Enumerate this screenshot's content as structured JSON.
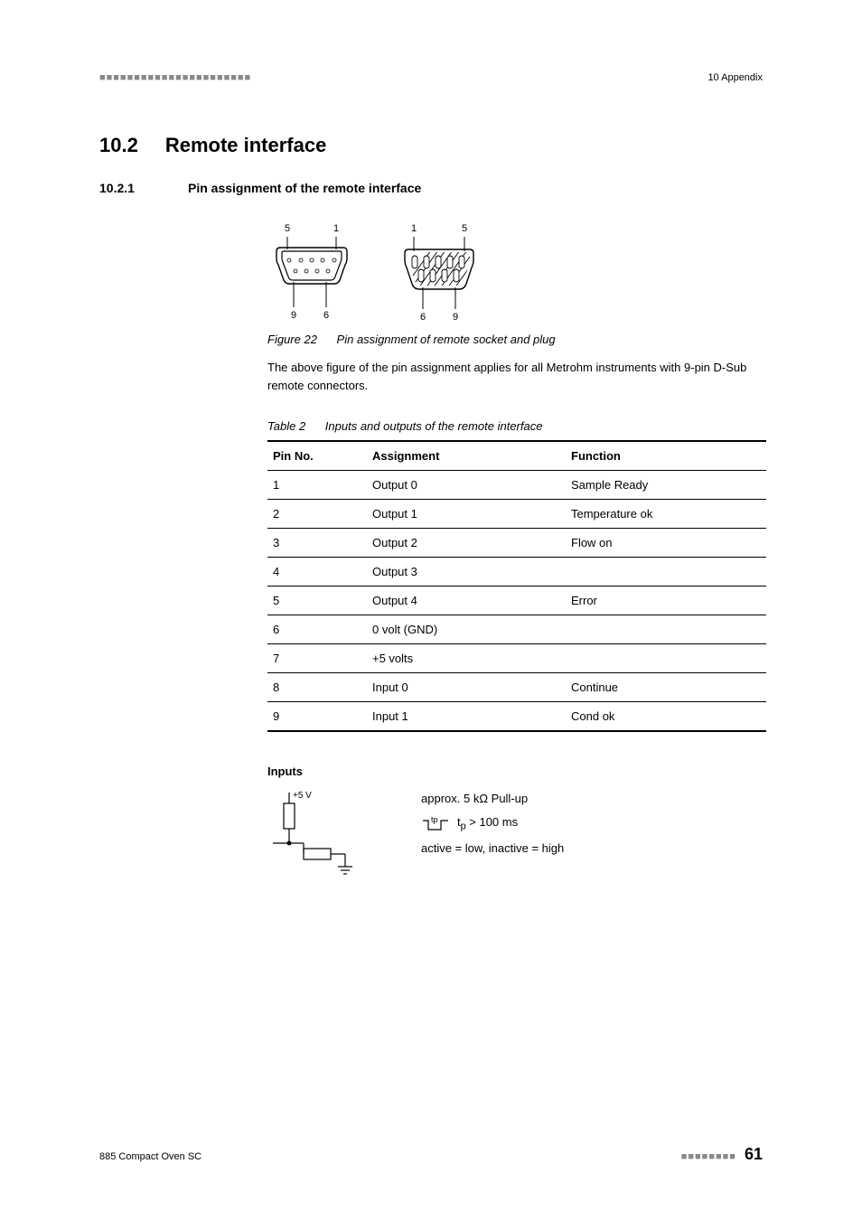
{
  "header": {
    "right": "10 Appendix"
  },
  "section": {
    "num": "10.2",
    "title": "Remote interface"
  },
  "subsection": {
    "num": "10.2.1",
    "title": "Pin assignment of the remote interface"
  },
  "figure22": {
    "label": "Figure 22",
    "caption_text": "Pin assignment of remote socket and plug",
    "socket": {
      "pin_labels": {
        "top_left": "5",
        "top_right": "1",
        "bottom_left": "9",
        "bottom_right": "6"
      },
      "pin_label_fontsize": 11,
      "outer_stroke": "#000000",
      "inner_stroke": "#000000",
      "stroke_width": 1.4,
      "fill": "none"
    },
    "plug": {
      "pin_labels": {
        "top_left": "1",
        "top_right": "5",
        "bottom_left": "6",
        "bottom_right": "9"
      },
      "pin_label_fontsize": 11,
      "outer_stroke": "#000000",
      "stroke_width": 1.4,
      "hatch_stroke": "#000000",
      "fill": "none"
    }
  },
  "body_after_fig": "The above figure of the pin assignment applies for all Metrohm instruments with 9-pin D-Sub remote connectors.",
  "table2": {
    "label": "Table 2",
    "caption_text": "Inputs and outputs of the remote interface",
    "header_bg": "#ffffff",
    "border_color": "#000000",
    "fontsize": 13,
    "columns": [
      "Pin No.",
      "Assignment",
      "Function"
    ],
    "rows": [
      [
        "1",
        "Output 0",
        "Sample Ready"
      ],
      [
        "2",
        "Output 1",
        "Temperature ok"
      ],
      [
        "3",
        "Output 2",
        "Flow on"
      ],
      [
        "4",
        "Output 3",
        ""
      ],
      [
        "5",
        "Output 4",
        "Error"
      ],
      [
        "6",
        "0 volt (GND)",
        ""
      ],
      [
        "7",
        "+5 volts",
        ""
      ],
      [
        "8",
        "Input 0",
        "Continue"
      ],
      [
        "9",
        "Input 1",
        "Cond ok"
      ]
    ]
  },
  "inputs": {
    "heading": "Inputs",
    "circuit": {
      "supply_label": "+5 V",
      "label_fontsize": 10,
      "stroke": "#000000",
      "stroke_width": 1.2
    },
    "text": {
      "line1": "approx. 5 kΩ Pull-up",
      "pulse_label": "tp",
      "pulse_text_prefix": "t",
      "pulse_text_sub": "p",
      "pulse_text_rest": "  >  100 ms",
      "line3": "active = low, inactive = high"
    }
  },
  "footer": {
    "left": "885 Compact Oven SC",
    "page": "61"
  }
}
